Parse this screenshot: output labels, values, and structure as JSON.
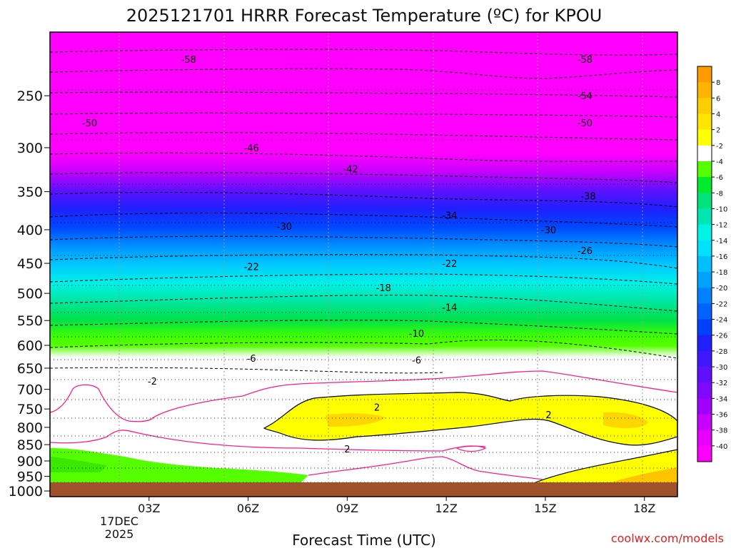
{
  "chart_data": {
    "type": "heatmap",
    "title": "2025121701 HRRR Forecast Temperature (ºC) for KPOU",
    "xlabel": "Forecast Time (UTC)",
    "ylabel": "",
    "x_ticks": [
      {
        "label": "03Z",
        "hour": 3
      },
      {
        "label": "06Z",
        "hour": 6
      },
      {
        "label": "09Z",
        "hour": 9
      },
      {
        "label": "12Z",
        "hour": 12
      },
      {
        "label": "15Z",
        "hour": 15
      },
      {
        "label": "18Z",
        "hour": 18
      }
    ],
    "x_subtitle": [
      "17DEC",
      "2025"
    ],
    "xlim": [
      0,
      19
    ],
    "y_ticks": [
      250,
      300,
      350,
      400,
      450,
      500,
      550,
      600,
      650,
      700,
      750,
      800,
      850,
      900,
      950,
      1000
    ],
    "ylim": [
      1020,
      200
    ],
    "y_scale": "log",
    "y_direction": "inverted",
    "grid": true,
    "colorbar": {
      "position": "right",
      "labels": [
        "8",
        "6",
        "4",
        "2",
        "-2",
        "-4",
        "-6",
        "-8",
        "-10",
        "-12",
        "-14",
        "-16",
        "-18",
        "-20",
        "-22",
        "-24",
        "-26",
        "-28",
        "-30",
        "-32",
        "-34",
        "-36",
        "-38",
        "-40"
      ],
      "colors": [
        "#ff9a00",
        "#ffb400",
        "#ffce00",
        "#ffe600",
        "#ffff00",
        "#ffffff",
        "#55ff00",
        "#00ea2e",
        "#00e27a",
        "#00e6b2",
        "#00f2e4",
        "#00e0ff",
        "#00c0ff",
        "#00a2ff",
        "#0082ff",
        "#0062ff",
        "#0040ff",
        "#2020ff",
        "#4018ff",
        "#6010ff",
        "#8008ff",
        "#a000ff",
        "#c800ff",
        "#e800ff",
        "#ff00ff"
      ]
    },
    "contours": [
      {
        "value": -58,
        "label": "-58",
        "pressure": 220,
        "x": 4.2
      },
      {
        "value": -58,
        "label": "-58",
        "pressure": 220,
        "x": 16.2
      },
      {
        "value": -54,
        "label": "-54",
        "pressure": 250,
        "x": 16.2
      },
      {
        "value": -50,
        "label": "-50",
        "pressure": 275,
        "x": 1.2
      },
      {
        "value": -50,
        "label": "-50",
        "pressure": 275,
        "x": 16.2
      },
      {
        "value": -46,
        "label": "-46",
        "pressure": 300,
        "x": 6.1
      },
      {
        "value": -42,
        "label": "-42",
        "pressure": 323,
        "x": 9.1
      },
      {
        "value": -38,
        "label": "-38",
        "pressure": 355,
        "x": 16.3
      },
      {
        "value": -34,
        "label": "-34",
        "pressure": 380,
        "x": 12.1
      },
      {
        "value": -30,
        "label": "-30",
        "pressure": 395,
        "x": 7.1
      },
      {
        "value": -30,
        "label": "-30",
        "pressure": 400,
        "x": 15.1
      },
      {
        "value": -26,
        "label": "-26",
        "pressure": 430,
        "x": 16.2
      },
      {
        "value": -22,
        "label": "-22",
        "pressure": 455,
        "x": 6.1
      },
      {
        "value": -22,
        "label": "-22",
        "pressure": 450,
        "x": 12.1
      },
      {
        "value": -18,
        "label": "-18",
        "pressure": 490,
        "x": 10.1
      },
      {
        "value": -14,
        "label": "-14",
        "pressure": 525,
        "x": 12.1
      },
      {
        "value": -10,
        "label": "-10",
        "pressure": 575,
        "x": 11.1
      },
      {
        "value": -6,
        "label": "-6",
        "pressure": 628,
        "x": 6.1
      },
      {
        "value": -6,
        "label": "-6",
        "pressure": 632,
        "x": 11.1
      },
      {
        "value": -2,
        "label": "-2",
        "pressure": 680,
        "x": 3.1
      },
      {
        "value": 2,
        "label": "2",
        "pressure": 745,
        "x": 9.9
      },
      {
        "value": 2,
        "label": "2",
        "pressure": 765,
        "x": 15.1
      },
      {
        "value": 2,
        "label": "2",
        "pressure": 862,
        "x": 9.0
      }
    ]
  },
  "credit": "coolwx.com/models"
}
